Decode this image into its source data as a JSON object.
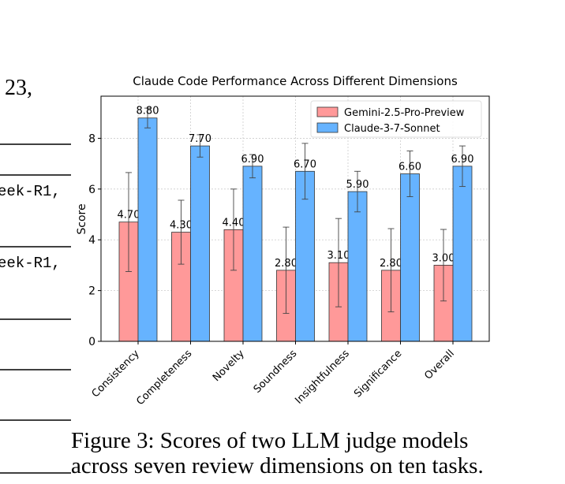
{
  "fragments": {
    "number": "23,",
    "model_1": "eek-R1,",
    "model_2": "eek-R1,"
  },
  "caption": {
    "line_1": "Figure 3: Scores of two LLM judge models",
    "line_2": "across seven review dimensions on ten tasks."
  },
  "chart_data": {
    "type": "bar",
    "title": "Claude Code Performance Across Different Dimensions",
    "y_label": "Score",
    "categories": [
      "Consistency",
      "Completeness",
      "Novelty",
      "Soundness",
      "Insightfulness",
      "Significance",
      "Overall"
    ],
    "series": [
      {
        "name": "Gemini-2.5-Pro-Preview",
        "color": "#ff9999",
        "values": [
          4.7,
          4.3,
          4.4,
          2.8,
          3.1,
          2.8,
          3.0
        ],
        "value_labels": [
          "4.70",
          "4.30",
          "4.40",
          "2.80",
          "3.10",
          "2.80",
          "3.00"
        ],
        "errors": [
          1.95,
          1.26,
          1.6,
          1.7,
          1.74,
          1.64,
          1.41
        ]
      },
      {
        "name": "Claude-3-7-Sonnet",
        "color": "#66b3ff",
        "values": [
          8.8,
          7.7,
          6.9,
          6.7,
          5.9,
          6.6,
          6.9
        ],
        "value_labels": [
          "8.80",
          "7.70",
          "6.90",
          "6.70",
          "5.90",
          "6.60",
          "6.90"
        ],
        "errors": [
          0.39,
          0.44,
          0.46,
          1.1,
          0.8,
          0.9,
          0.8
        ]
      }
    ],
    "ylim": [
      0,
      9.66
    ],
    "yticks": [
      0,
      2,
      4,
      6,
      8
    ],
    "grid": true,
    "legend": "upper right"
  }
}
